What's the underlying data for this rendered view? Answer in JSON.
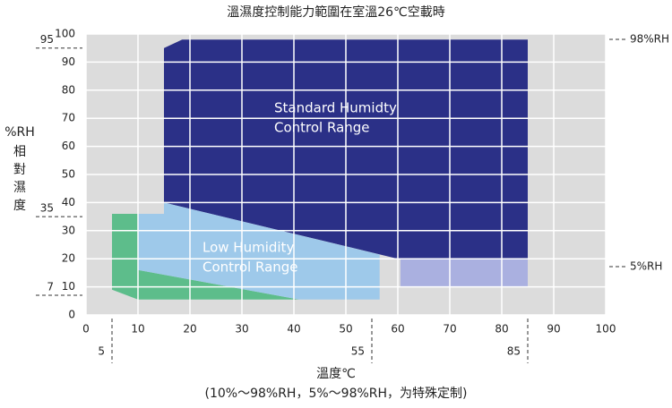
{
  "chart_data": {
    "type": "region",
    "title": "溫濕度控制能力範圍在室溫26℃空載時",
    "x_label": "溫度℃",
    "x_note": "(10%～98%RH，5%～98%RH，为特殊定制)",
    "y_label": "%RH",
    "y_label_2": "相對濕度",
    "xlim": [
      0,
      100
    ],
    "ylim": [
      0,
      100
    ],
    "xticks": [
      0,
      10,
      20,
      30,
      40,
      50,
      60,
      70,
      80,
      90,
      100
    ],
    "yticks": [
      0,
      10,
      20,
      30,
      40,
      50,
      60,
      70,
      80,
      90,
      100
    ],
    "grid": true,
    "y_refs": [
      95,
      35,
      7
    ],
    "x_refs": [
      5,
      55,
      85
    ],
    "right_labels": [
      "98%RH",
      "5%RH"
    ],
    "regions": [
      {
        "name": "Standard  Humidty",
        "name_2": "Control Range",
        "color": "#2b3087",
        "x": [
          15,
          15,
          18.5,
          85,
          85,
          60,
          15
        ],
        "y": [
          40,
          95,
          98,
          98,
          20,
          20,
          40
        ]
      },
      {
        "color": "#aab0e0",
        "x": [
          60.5,
          85,
          85,
          60.5
        ],
        "y": [
          20,
          20,
          10,
          10
        ]
      },
      {
        "color": "#5dbd8b",
        "x": [
          5,
          10,
          10,
          41,
          10,
          5
        ],
        "y": [
          36,
          36,
          16,
          5.5,
          5.5,
          9
        ]
      },
      {
        "name": "Low Humidity",
        "name_2": "Control Range",
        "color": "#9ec9ea",
        "x": [
          10,
          15,
          15,
          56.5,
          56.5,
          41,
          10
        ],
        "y": [
          36,
          36,
          40,
          21.5,
          5.5,
          5.5,
          16
        ]
      }
    ]
  }
}
